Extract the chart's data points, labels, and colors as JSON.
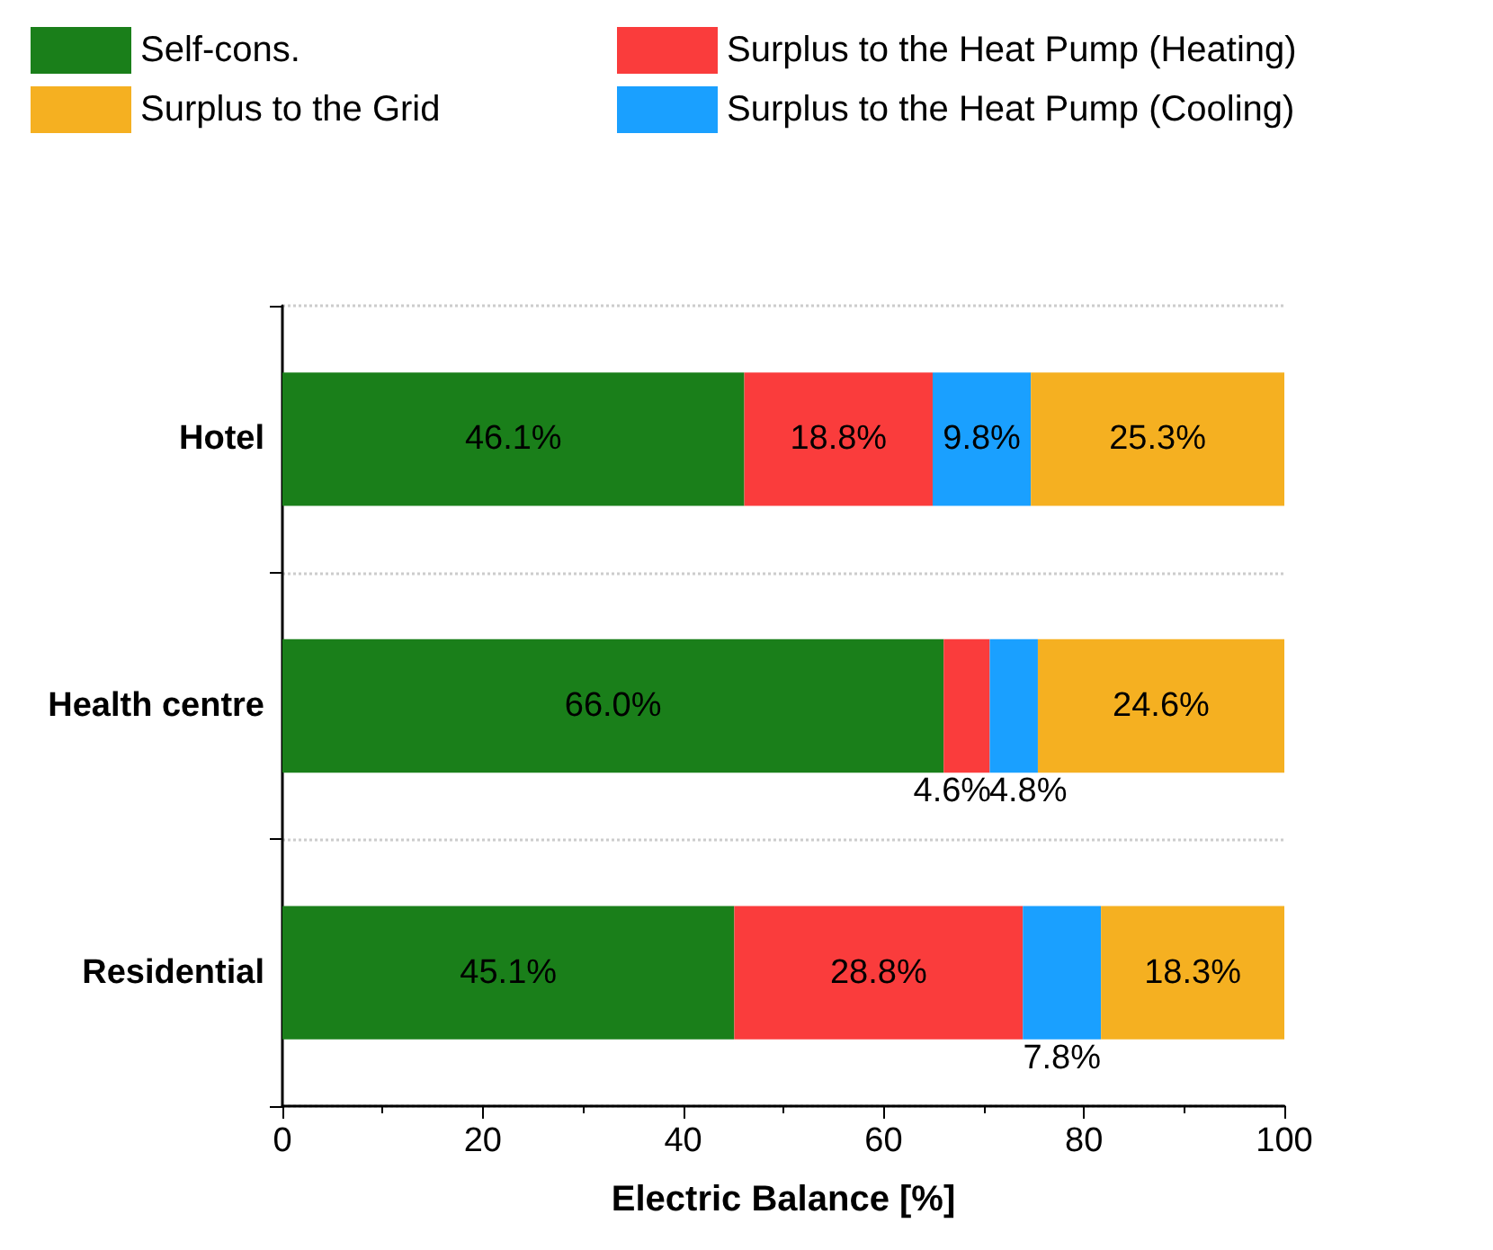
{
  "chart_data": {
    "type": "bar",
    "orientation": "horizontal",
    "stacked": true,
    "xlabel": "Electric Balance [%]",
    "categories": [
      "Hotel",
      "Health centre",
      "Residential"
    ],
    "series": [
      {
        "name": "Self-cons.",
        "color": "#1a7f1a",
        "values": [
          46.1,
          66.0,
          45.1
        ],
        "value_labels": [
          "46.1%",
          "66.0%",
          "45.1%"
        ]
      },
      {
        "name": "Surplus to the Heat Pump (Heating)",
        "color": "#fa3c3c",
        "values": [
          18.8,
          4.6,
          28.8
        ],
        "value_labels": [
          "18.8%",
          "4.6%",
          "28.8%"
        ]
      },
      {
        "name": "Surplus to the Heat Pump (Cooling)",
        "color": "#1aa0ff",
        "values": [
          9.8,
          4.8,
          7.8
        ],
        "value_labels": [
          "9.8%",
          "4.8%",
          "7.8%"
        ]
      },
      {
        "name": "Surplus to the Grid",
        "color": "#f5b021",
        "values": [
          25.3,
          24.6,
          18.3
        ],
        "value_labels": [
          "25.3%",
          "24.6%",
          "18.3%"
        ]
      }
    ],
    "xlim": [
      0,
      100
    ],
    "xticks": [
      0,
      20,
      40,
      60,
      80,
      100
    ],
    "grid": "y",
    "legend": "top"
  }
}
